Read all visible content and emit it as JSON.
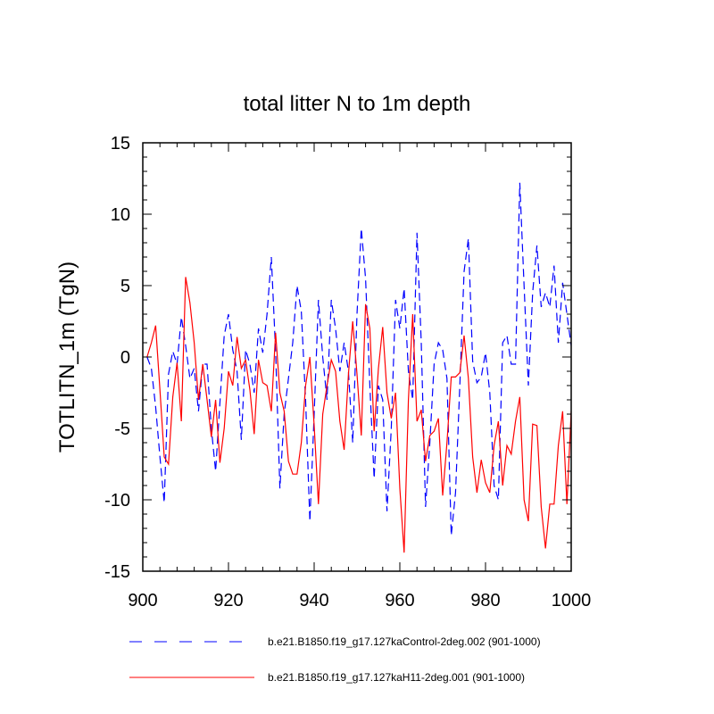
{
  "chart_data": {
    "type": "line",
    "title": "total litter N to 1m depth",
    "xlabel": "",
    "ylabel": "TOTLITN_1m  (TgN)",
    "xlim": [
      900,
      1000
    ],
    "ylim": [
      -15,
      15
    ],
    "x_ticks": [
      900,
      920,
      940,
      960,
      980,
      1000
    ],
    "x_tick_labels": [
      "900",
      "920",
      "940",
      "960",
      "980",
      "1000"
    ],
    "y_ticks": [
      15,
      10,
      5,
      0,
      -5,
      -10,
      -15
    ],
    "y_tick_labels": [
      "15",
      "10",
      "5",
      "0",
      "-5",
      "-10",
      "-15"
    ],
    "grid": false,
    "legend_position": "bottom",
    "x": [
      901,
      902,
      903,
      904,
      905,
      906,
      907,
      908,
      909,
      910,
      911,
      912,
      913,
      914,
      915,
      916,
      917,
      918,
      919,
      920,
      921,
      922,
      923,
      924,
      925,
      926,
      927,
      928,
      929,
      930,
      931,
      932,
      933,
      934,
      935,
      936,
      937,
      938,
      939,
      940,
      941,
      942,
      943,
      944,
      945,
      946,
      947,
      948,
      949,
      950,
      951,
      952,
      953,
      954,
      955,
      956,
      957,
      958,
      959,
      960,
      961,
      962,
      963,
      964,
      965,
      966,
      967,
      968,
      969,
      970,
      971,
      972,
      973,
      974,
      975,
      976,
      977,
      978,
      979,
      980,
      981,
      982,
      983,
      984,
      985,
      986,
      987,
      988,
      989,
      990,
      991,
      992,
      993,
      994,
      995,
      996,
      997,
      998,
      999,
      1000
    ],
    "series": [
      {
        "name": "b.e21.B1850.f19_g17.127kaControl-2deg.002 (901-1000)",
        "color": "#0000ff",
        "style": "dashed",
        "values": [
          0,
          -0.8,
          -3.5,
          -7,
          -10.2,
          -1.2,
          0.4,
          -0.5,
          2.8,
          0.8,
          -1.5,
          -0.8,
          -3.8,
          -0.5,
          -0.5,
          -5,
          -8,
          -3.2,
          1.5,
          3,
          0.5,
          -1,
          -5.8,
          0.5,
          -0.5,
          -2.5,
          2,
          0.3,
          3,
          7,
          0.4,
          -9.2,
          -4,
          -1.5,
          1,
          5,
          3.2,
          -3,
          -11.5,
          -4,
          4,
          0,
          -3,
          4,
          2,
          -1,
          1,
          -1,
          -6,
          3,
          9,
          5.5,
          -2,
          -8.5,
          -2,
          -3,
          -10.8,
          -5,
          4,
          2,
          4.8,
          -1,
          -3,
          8.7,
          1,
          -10.5,
          -6,
          -0.5,
          1,
          0.5,
          -1.5,
          -12.5,
          -9.5,
          -2,
          6,
          8.3,
          -0.3,
          -1.8,
          -1.4,
          0.3,
          -2.5,
          -9,
          -10,
          1,
          1.5,
          -0.5,
          -0.5,
          12.2,
          5,
          -2,
          4.5,
          7.8,
          3.5,
          4.5,
          3.5,
          6.4,
          1,
          5.2,
          3,
          0.8
        ]
      },
      {
        "name": "b.e21.B1850.f19_g17.127kaH11-2deg.001 (901-1000)",
        "color": "#ff0000",
        "style": "solid",
        "values": [
          0,
          1,
          2.2,
          -2.3,
          -7,
          -7.5,
          -2.8,
          -0.4,
          -4.5,
          5.6,
          3.8,
          1,
          -3,
          -0.5,
          -3,
          -5.6,
          -3,
          -7.4,
          -5,
          -1,
          -2,
          1.4,
          -0.8,
          -0.2,
          -2.3,
          -5.4,
          -0.2,
          -1.8,
          -2,
          -3.8,
          1.7,
          -2.5,
          -3.8,
          -7.3,
          -8.2,
          -8.2,
          -6,
          -2,
          0,
          -4.8,
          -10.3,
          -4,
          -2,
          -0.2,
          -1,
          -4.5,
          -6.5,
          -1.2,
          2.5,
          -1.2,
          -5.5,
          3.7,
          2,
          -5.2,
          -0.8,
          2.1,
          -2.5,
          -4.3,
          -2.5,
          -9.2,
          -13.7,
          -3,
          3,
          -4.5,
          -3.7,
          -7.3,
          -5.5,
          -5.2,
          -4.3,
          -9.7,
          -6,
          -1.4,
          -1.4,
          -1.1,
          1.5,
          -1.5,
          -7,
          -9.5,
          -7.2,
          -8.8,
          -9.5,
          -6.2,
          -4.5,
          -9,
          -6.2,
          -6.8,
          -4.5,
          -2.8,
          -10,
          -11.5,
          -4.7,
          -4.8,
          -10.5,
          -13.4,
          -10.3,
          -10.3,
          -6.2,
          -3.8,
          -10.3,
          -3.8
        ]
      }
    ]
  }
}
